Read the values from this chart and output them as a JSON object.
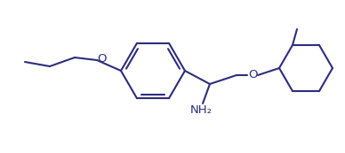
{
  "line_color": "#2d2d7f",
  "bg_color": "#ffffff",
  "lw": 1.5,
  "figsize": [
    3.88,
    1.73
  ],
  "dpi": 100,
  "nh2_label": "NH₂",
  "o_label1": "O",
  "o_label2": "O"
}
